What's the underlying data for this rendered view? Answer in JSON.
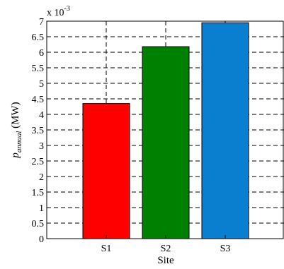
{
  "chart_data": {
    "type": "bar",
    "categories": [
      "S1",
      "S2",
      "S3"
    ],
    "values": [
      0.00435,
      0.00618,
      0.00695
    ],
    "colors": [
      "#ff0000",
      "#008000",
      "#0a7fd0"
    ],
    "xlabel": "Site",
    "ylabel_main": "p",
    "ylabel_subscript": "annual",
    "ylabel_unit": " (MW)",
    "ylim": [
      0,
      0.007
    ],
    "y_scale_factor": 0.001,
    "y_multiplier_base": "x 10",
    "y_multiplier_exponent": "-3",
    "yticks": [
      "0",
      "0.5",
      "1",
      "1.5",
      "2",
      "2.5",
      "3",
      "3.5",
      "4",
      "4.5",
      "5",
      "5.5",
      "6",
      "6.5",
      "7"
    ],
    "grid": true,
    "grid_style": "dashed"
  }
}
